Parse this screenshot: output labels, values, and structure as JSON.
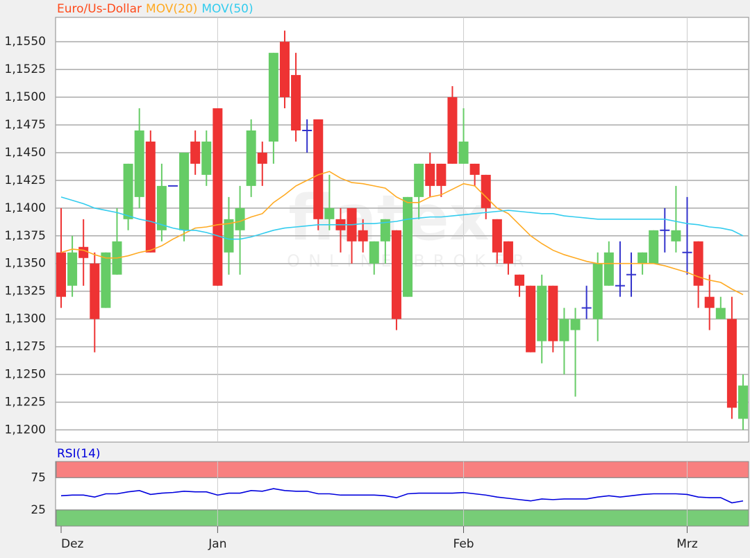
{
  "chart_data": [
    {
      "type": "candlestick",
      "categories": [
        "Dez",
        null,
        null,
        null,
        null,
        null,
        null,
        null,
        null,
        null,
        null,
        null,
        null,
        null,
        "Jan",
        null,
        null,
        null,
        null,
        null,
        null,
        null,
        null,
        null,
        null,
        null,
        null,
        null,
        null,
        null,
        null,
        null,
        null,
        null,
        null,
        null,
        "Feb",
        null,
        null,
        null,
        null,
        null,
        null,
        null,
        null,
        null,
        null,
        null,
        null,
        null,
        null,
        null,
        null,
        null,
        null,
        null,
        "Mrz",
        null,
        null,
        null,
        null,
        null
      ],
      "series": [
        {
          "name": "Euro/Us-Dollar",
          "color": "#ff4a1a",
          "up_color": "#66cc66",
          "down_color": "#ee3333",
          "unchanged_color": "#3333cc",
          "open": [
            1.136,
            1.133,
            1.1365,
            1.135,
            1.131,
            1.134,
            1.139,
            1.141,
            1.146,
            1.138,
            1.142,
            1.138,
            1.146,
            1.143,
            1.149,
            1.136,
            1.138,
            1.142,
            1.145,
            1.146,
            1.155,
            1.152,
            1.147,
            1.148,
            1.139,
            1.139,
            1.14,
            1.138,
            1.135,
            1.137,
            1.138,
            1.132,
            1.141,
            1.144,
            1.144,
            1.15,
            1.144,
            1.144,
            1.143,
            1.139,
            1.137,
            1.134,
            1.133,
            1.128,
            1.133,
            1.128,
            1.129,
            1.131,
            1.13,
            1.133,
            1.133,
            1.134,
            1.135,
            1.135,
            1.138,
            1.137,
            1.136,
            1.137,
            1.132,
            1.13,
            1.13,
            1.121
          ],
          "high": [
            1.14,
            1.1375,
            1.139,
            1.136,
            1.136,
            1.14,
            1.144,
            1.149,
            1.147,
            1.144,
            1.142,
            1.145,
            1.147,
            1.147,
            1.149,
            1.141,
            1.142,
            1.148,
            1.146,
            1.154,
            1.156,
            1.154,
            1.148,
            1.148,
            1.143,
            1.14,
            1.14,
            1.139,
            1.137,
            1.139,
            1.138,
            1.141,
            1.144,
            1.145,
            1.144,
            1.151,
            1.149,
            1.144,
            1.143,
            1.139,
            1.137,
            1.134,
            1.133,
            1.134,
            1.133,
            1.131,
            1.131,
            1.133,
            1.136,
            1.137,
            1.137,
            1.136,
            1.136,
            1.138,
            1.14,
            1.142,
            1.141,
            1.137,
            1.134,
            1.132,
            1.132,
            1.125
          ],
          "low": [
            1.131,
            1.132,
            1.133,
            1.127,
            1.131,
            1.134,
            1.138,
            1.14,
            1.136,
            1.137,
            1.142,
            1.137,
            1.143,
            1.142,
            1.133,
            1.134,
            1.134,
            1.141,
            1.142,
            1.144,
            1.149,
            1.146,
            1.145,
            1.138,
            1.138,
            1.136,
            1.135,
            1.136,
            1.134,
            1.135,
            1.129,
            1.132,
            1.139,
            1.141,
            1.141,
            1.144,
            1.144,
            1.142,
            1.139,
            1.135,
            1.134,
            1.132,
            1.127,
            1.126,
            1.127,
            1.125,
            1.123,
            1.13,
            1.128,
            1.133,
            1.132,
            1.132,
            1.134,
            1.135,
            1.136,
            1.136,
            1.134,
            1.131,
            1.129,
            1.13,
            1.121,
            1.12
          ],
          "close": [
            1.132,
            1.136,
            1.1355,
            1.13,
            1.136,
            1.137,
            1.144,
            1.147,
            1.136,
            1.142,
            1.142,
            1.145,
            1.144,
            1.146,
            1.133,
            1.139,
            1.14,
            1.147,
            1.144,
            1.154,
            1.15,
            1.147,
            1.147,
            1.139,
            1.14,
            1.138,
            1.137,
            1.137,
            1.137,
            1.139,
            1.13,
            1.141,
            1.144,
            1.142,
            1.142,
            1.144,
            1.146,
            1.143,
            1.14,
            1.136,
            1.135,
            1.133,
            1.127,
            1.133,
            1.128,
            1.13,
            1.13,
            1.131,
            1.135,
            1.136,
            1.133,
            1.134,
            1.136,
            1.138,
            1.138,
            1.138,
            1.136,
            1.133,
            1.131,
            1.131,
            1.122,
            1.124
          ]
        },
        {
          "name": "MOV(20)",
          "type": "line",
          "color": "#ffaa22",
          "values": [
            1.136,
            1.1363,
            1.1362,
            1.1358,
            1.1355,
            1.1355,
            1.1357,
            1.136,
            1.1362,
            1.1366,
            1.1372,
            1.1377,
            1.1382,
            1.1383,
            1.1385,
            1.1386,
            1.1388,
            1.1392,
            1.1395,
            1.1405,
            1.1412,
            1.142,
            1.1425,
            1.143,
            1.1433,
            1.1427,
            1.1423,
            1.1422,
            1.142,
            1.1418,
            1.141,
            1.1405,
            1.1405,
            1.141,
            1.1412,
            1.1417,
            1.1422,
            1.142,
            1.141,
            1.14,
            1.1395,
            1.1385,
            1.1375,
            1.1368,
            1.1362,
            1.1358,
            1.1355,
            1.1352,
            1.135,
            1.135,
            1.135,
            1.135,
            1.135,
            1.135,
            1.1348,
            1.1345,
            1.1342,
            1.1338,
            1.1335,
            1.1333,
            1.1327,
            1.1322
          ]
        },
        {
          "name": "MOV(50)",
          "type": "line",
          "color": "#33ccee",
          "values": [
            1.141,
            1.1407,
            1.1404,
            1.14,
            1.1398,
            1.1396,
            1.1393,
            1.139,
            1.1388,
            1.1385,
            1.1382,
            1.138,
            1.138,
            1.1378,
            1.1375,
            1.1372,
            1.1372,
            1.1374,
            1.1377,
            1.138,
            1.1382,
            1.1383,
            1.1384,
            1.1385,
            1.1385,
            1.1385,
            1.1385,
            1.1386,
            1.1386,
            1.1387,
            1.1388,
            1.139,
            1.1391,
            1.1392,
            1.1392,
            1.1393,
            1.1394,
            1.1395,
            1.1396,
            1.1397,
            1.1398,
            1.1397,
            1.1396,
            1.1395,
            1.1395,
            1.1393,
            1.1392,
            1.1391,
            1.139,
            1.139,
            1.139,
            1.139,
            1.139,
            1.139,
            1.139,
            1.1388,
            1.1386,
            1.1385,
            1.1383,
            1.1382,
            1.138,
            1.1375
          ]
        }
      ],
      "ylim": [
        1.1189,
        1.1572
      ],
      "yticks": [
        {
          "value": 1.12,
          "label": "1,1200"
        },
        {
          "value": 1.1225,
          "label": "1,1225"
        },
        {
          "value": 1.125,
          "label": "1,1250"
        },
        {
          "value": 1.1275,
          "label": "1,1275"
        },
        {
          "value": 1.13,
          "label": "1,1300"
        },
        {
          "value": 1.1325,
          "label": "1,1325"
        },
        {
          "value": 1.135,
          "label": "1,1350"
        },
        {
          "value": 1.1375,
          "label": "1,1375"
        },
        {
          "value": 1.14,
          "label": "1,1400"
        },
        {
          "value": 1.1425,
          "label": "1,1425"
        },
        {
          "value": 1.145,
          "label": "1,1450"
        },
        {
          "value": 1.1475,
          "label": "1,1475"
        },
        {
          "value": 1.15,
          "label": "1,1500"
        },
        {
          "value": 1.1525,
          "label": "1,1525"
        },
        {
          "value": 1.155,
          "label": "1,1550"
        }
      ],
      "grid": true
    },
    {
      "type": "line",
      "series": [
        {
          "name": "RSI(14)",
          "color": "#0000dd",
          "values": [
            47,
            48,
            48,
            45,
            50,
            50,
            53,
            55,
            49,
            51,
            52,
            54,
            53,
            53,
            48,
            51,
            51,
            55,
            54,
            58,
            55,
            54,
            54,
            50,
            50,
            48,
            48,
            48,
            48,
            47,
            44,
            50,
            51,
            51,
            51,
            51,
            52,
            50,
            48,
            45,
            43,
            41,
            39,
            42,
            41,
            42,
            42,
            42,
            45,
            47,
            45,
            47,
            49,
            50,
            50,
            50,
            49,
            45,
            44,
            44,
            36,
            39
          ]
        }
      ],
      "ylim": [
        0,
        100
      ],
      "yticks": [
        25,
        75
      ],
      "bands": [
        {
          "from": 75,
          "to": 100,
          "color": "#f88080"
        },
        {
          "from": 0,
          "to": 25,
          "color": "#77cc77"
        }
      ]
    }
  ],
  "watermark": {
    "brand": "flatex",
    "tagline": "ONLINE BROKER"
  }
}
